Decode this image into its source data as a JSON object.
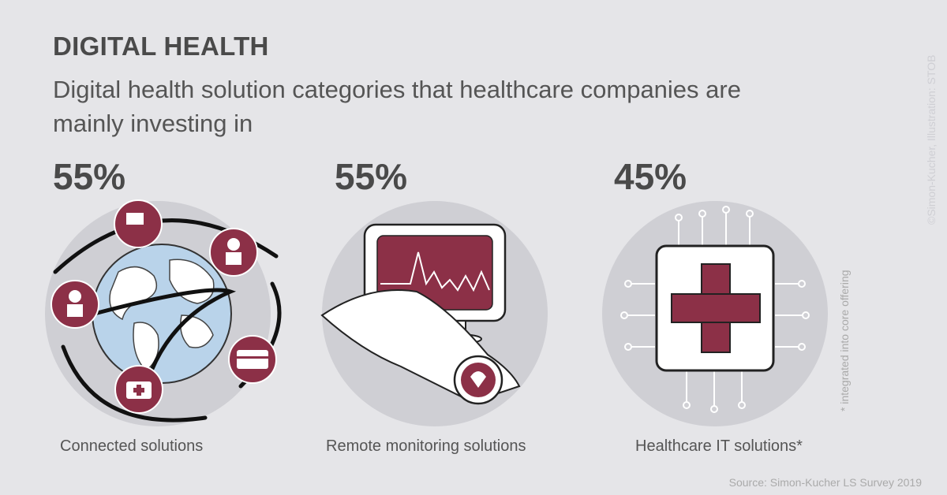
{
  "title": "DIGITAL HEALTH",
  "subtitle": "Digital health solution categories that healthcare companies are mainly investing in",
  "credit": "©Simon-Kucher, Illustration: STOB",
  "footnote": "* integrated into core offering",
  "source": "Source: Simon-Kucher LS Survey 2019",
  "colors": {
    "accent": "#8c3047",
    "circle": "#cfcfd4",
    "text": "#4a4a4a"
  },
  "chart_data": {
    "type": "bar",
    "categories": [
      "Connected solutions",
      "Remote monitoring solutions",
      "Healthcare IT solutions*"
    ],
    "values": [
      55,
      55,
      45
    ],
    "value_labels": [
      "55%",
      "55%",
      "45%"
    ],
    "unit": "%",
    "icons": [
      "globe-network-icon",
      "smartwatch-monitor-icon",
      "circuit-cross-icon"
    ]
  }
}
